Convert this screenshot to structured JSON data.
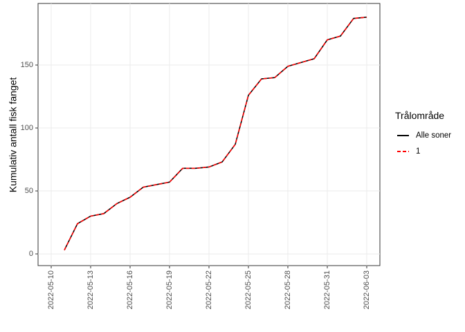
{
  "chart_data": {
    "type": "line",
    "y_label": "Kumulativ antall fisk fanget",
    "legend_title": "Trålområde",
    "legend_position": "right",
    "grid": true,
    "x": [
      "2022-05-11",
      "2022-05-12",
      "2022-05-13",
      "2022-05-14",
      "2022-05-15",
      "2022-05-16",
      "2022-05-17",
      "2022-05-18",
      "2022-05-19",
      "2022-05-20",
      "2022-05-21",
      "2022-05-22",
      "2022-05-23",
      "2022-05-24",
      "2022-05-25",
      "2022-05-26",
      "2022-05-27",
      "2022-05-28",
      "2022-05-29",
      "2022-05-30",
      "2022-05-31",
      "2022-06-01",
      "2022-06-02",
      "2022-06-03"
    ],
    "series": [
      {
        "name": "Alle soner",
        "color": "#000000",
        "dashed": false,
        "values": [
          3,
          24,
          30,
          32,
          40,
          45,
          53,
          55,
          57,
          68,
          68,
          69,
          73,
          87,
          126,
          139,
          140,
          149,
          152,
          155,
          170,
          173,
          187,
          188
        ]
      },
      {
        "name": "1",
        "color": "#ff0000",
        "dashed": true,
        "values": [
          3,
          24,
          30,
          32,
          40,
          45,
          53,
          55,
          57,
          68,
          68,
          69,
          73,
          87,
          126,
          139,
          140,
          149,
          152,
          155,
          170,
          173,
          187,
          188
        ]
      }
    ],
    "xlim": [
      "2022-05-09",
      "2022-06-04"
    ],
    "xticks": [
      "2022-05-10",
      "2022-05-13",
      "2022-05-16",
      "2022-05-19",
      "2022-05-22",
      "2022-05-25",
      "2022-05-28",
      "2022-05-31",
      "2022-06-03"
    ],
    "ylim": [
      -9.3,
      198.9
    ],
    "yticks": [
      0,
      50,
      100,
      150
    ]
  }
}
